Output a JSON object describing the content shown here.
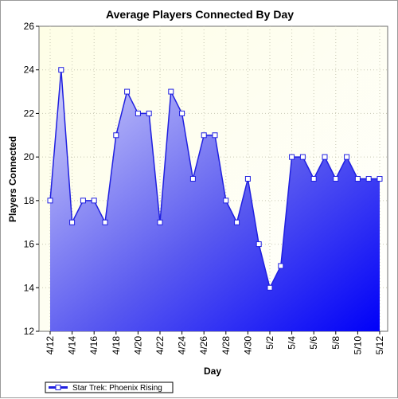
{
  "chart_data": {
    "type": "area",
    "title": "Average Players Connected By Day",
    "xlabel": "Day",
    "ylabel": "Players Connected",
    "ylim": [
      12,
      26
    ],
    "yticks": [
      12,
      14,
      16,
      18,
      20,
      22,
      24,
      26
    ],
    "grid": true,
    "legend_position": "bottom-left",
    "x": [
      "4/12",
      "4/13",
      "4/14",
      "4/15",
      "4/16",
      "4/17",
      "4/18",
      "4/19",
      "4/20",
      "4/21",
      "4/22",
      "4/23",
      "4/24",
      "4/25",
      "4/26",
      "4/27",
      "4/28",
      "4/29",
      "4/30",
      "5/1",
      "5/2",
      "5/3",
      "5/4",
      "5/5",
      "5/6",
      "5/7",
      "5/8",
      "5/9",
      "5/10",
      "5/11",
      "5/12"
    ],
    "xtick_labels": [
      "4/12",
      "4/14",
      "4/16",
      "4/18",
      "4/20",
      "4/22",
      "4/24",
      "4/26",
      "4/28",
      "4/30",
      "5/2",
      "5/4",
      "5/6",
      "5/8",
      "5/10",
      "5/12"
    ],
    "series": [
      {
        "name": "Star Trek: Phoenix Rising",
        "values": [
          18,
          24,
          17,
          18,
          18,
          17,
          21,
          23,
          22,
          22,
          17,
          23,
          22,
          19,
          21,
          21,
          18,
          17,
          19,
          16,
          14,
          15,
          20,
          20,
          19,
          20,
          19,
          20,
          19,
          19,
          19
        ],
        "line_color": "#2020e0"
      }
    ],
    "colors": {
      "plot_bg_top": "#fefee6",
      "area_top": "#c8c8f8",
      "area_bottom": "#0000f8"
    }
  }
}
